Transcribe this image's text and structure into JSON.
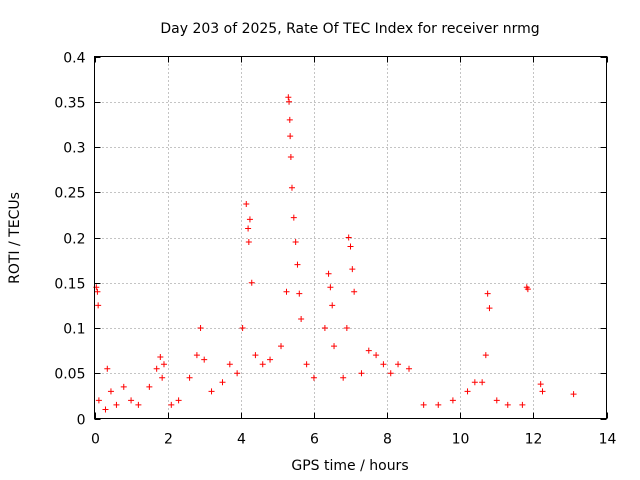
{
  "chart_data": {
    "type": "scatter",
    "title": "Day 203 of 2025, Rate Of TEC Index for receiver nrmg",
    "xlabel": "GPS time / hours",
    "ylabel": "ROTI / TECUs",
    "xlim": [
      0,
      14
    ],
    "ylim": [
      0,
      0.4
    ],
    "xticks": [
      "0",
      "2",
      "4",
      "6",
      "8",
      "10",
      "12",
      "14"
    ],
    "yticks": [
      "0",
      "0.05",
      "0.1",
      "0.15",
      "0.2",
      "0.25",
      "0.3",
      "0.35",
      "0.4"
    ],
    "xtick_values": [
      0,
      2,
      4,
      6,
      8,
      10,
      12,
      14
    ],
    "ytick_values": [
      0,
      0.05,
      0.1,
      0.15,
      0.2,
      0.25,
      0.3,
      0.35,
      0.4
    ],
    "grid": true,
    "marker": "+",
    "series": [
      {
        "name": "ROTI",
        "color": "#ff0000",
        "x": [
          0.05,
          0.08,
          0.1,
          0.12,
          0.3,
          0.35,
          0.45,
          0.6,
          0.8,
          1.0,
          1.2,
          1.5,
          1.7,
          1.8,
          1.85,
          1.9,
          2.1,
          2.3,
          2.6,
          2.8,
          2.9,
          3.0,
          3.2,
          3.5,
          3.7,
          3.9,
          4.05,
          4.15,
          4.2,
          4.22,
          4.25,
          4.3,
          4.4,
          4.6,
          4.8,
          5.1,
          5.25,
          5.3,
          5.32,
          5.34,
          5.35,
          5.37,
          5.4,
          5.45,
          5.5,
          5.55,
          5.6,
          5.65,
          5.8,
          6.0,
          6.3,
          6.4,
          6.45,
          6.5,
          6.55,
          6.8,
          6.9,
          6.95,
          7.0,
          7.05,
          7.1,
          7.3,
          7.5,
          7.7,
          7.9,
          8.1,
          8.3,
          8.6,
          9.0,
          9.4,
          9.8,
          10.2,
          10.4,
          10.6,
          10.7,
          10.75,
          10.8,
          11.0,
          11.3,
          11.7,
          11.82,
          11.85,
          12.2,
          12.25,
          13.1
        ],
        "y": [
          0.145,
          0.14,
          0.125,
          0.02,
          0.01,
          0.055,
          0.03,
          0.015,
          0.035,
          0.02,
          0.015,
          0.035,
          0.055,
          0.068,
          0.045,
          0.06,
          0.015,
          0.02,
          0.045,
          0.07,
          0.1,
          0.065,
          0.03,
          0.04,
          0.06,
          0.05,
          0.1,
          0.237,
          0.21,
          0.195,
          0.22,
          0.15,
          0.07,
          0.06,
          0.065,
          0.08,
          0.14,
          0.355,
          0.35,
          0.33,
          0.312,
          0.289,
          0.255,
          0.222,
          0.195,
          0.17,
          0.138,
          0.11,
          0.06,
          0.045,
          0.1,
          0.16,
          0.145,
          0.125,
          0.08,
          0.045,
          0.1,
          0.2,
          0.19,
          0.165,
          0.14,
          0.05,
          0.075,
          0.07,
          0.06,
          0.05,
          0.06,
          0.055,
          0.015,
          0.015,
          0.02,
          0.03,
          0.04,
          0.04,
          0.07,
          0.138,
          0.122,
          0.02,
          0.015,
          0.015,
          0.145,
          0.143,
          0.038,
          0.03,
          0.027
        ]
      }
    ]
  }
}
